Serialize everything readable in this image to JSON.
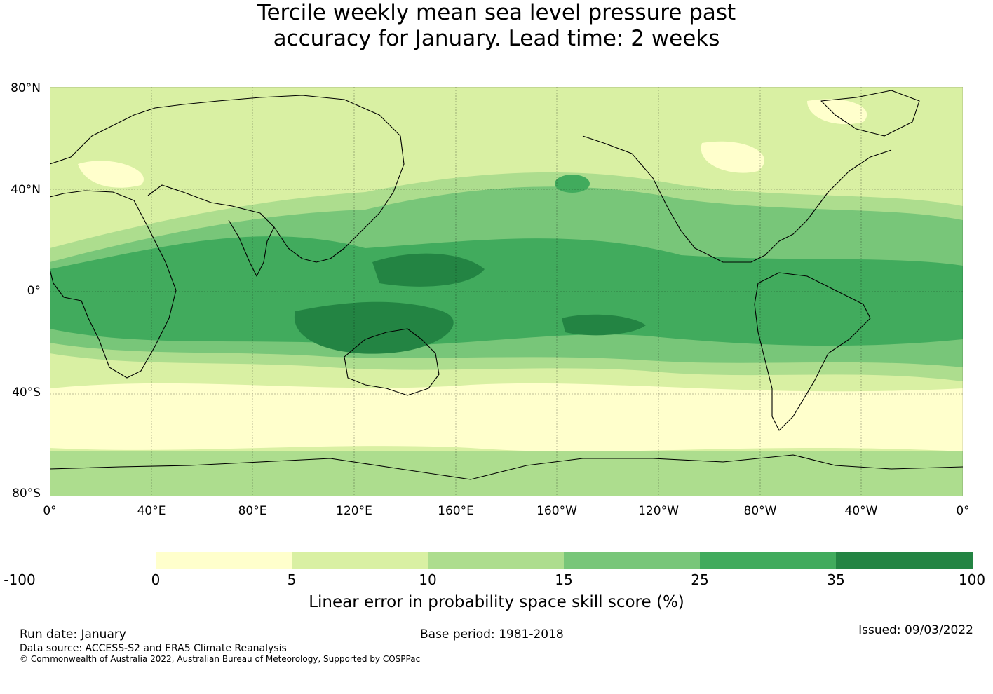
{
  "title": {
    "line1": "Tercile weekly mean sea level pressure past",
    "line2": "accuracy for January. Lead time: 2 weeks"
  },
  "map": {
    "lat_labels": [
      "80°N",
      "40°N",
      "0°",
      "40°S",
      "80°S"
    ],
    "lon_labels": [
      "0°",
      "40°E",
      "80°E",
      "120°E",
      "160°E",
      "160°W",
      "120°W",
      "80°W",
      "40°W",
      "0°"
    ]
  },
  "colorbar": {
    "label": "Linear error in probability space skill score (%)",
    "ticks": [
      "-100",
      "0",
      "5",
      "10",
      "15",
      "25",
      "35",
      "100"
    ],
    "colors": [
      "#ffffff",
      "#ffffcc",
      "#d9f0a3",
      "#addd8e",
      "#78c679",
      "#41ab5d",
      "#238443"
    ]
  },
  "footer": {
    "run_date": "Run date: January",
    "base_period": "Base period: 1981-2018",
    "issued": "Issued: 09/03/2022",
    "data_source": "Data source: ACCESS-S2 and ERA5 Climate Reanalysis",
    "copyright": "© Commonwealth of Australia 2022, Australian Bureau of Meteorology, Supported by COSPPac"
  }
}
